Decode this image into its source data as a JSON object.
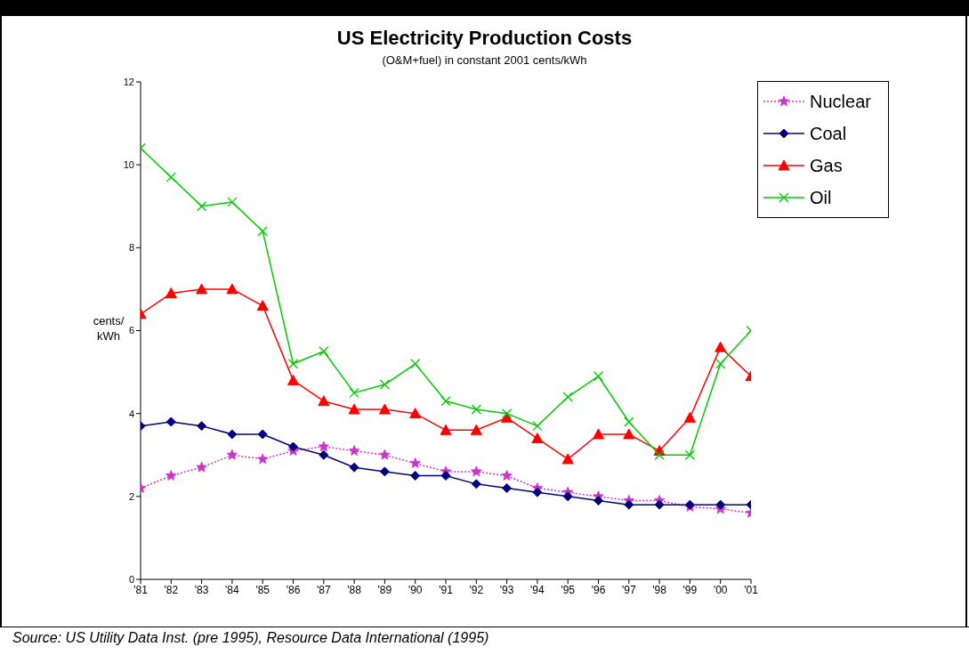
{
  "chart_data": {
    "type": "line",
    "title": "US Electricity Production Costs",
    "subtitle": "(O&M+fuel) in constant 2001 cents/kWh",
    "ylabel": "cents/ kWh",
    "categories": [
      "'81",
      "'82",
      "'83",
      "'84",
      "'85",
      "'86",
      "'87",
      "'88",
      "'89",
      "'90",
      "'91",
      "'92",
      "'93",
      "'94",
      "'95",
      "'96",
      "'97",
      "'98",
      "'99",
      "'00",
      "'01"
    ],
    "series": [
      {
        "name": "Nuclear",
        "color": "#cc33cc",
        "marker": "star",
        "line_style": "dotted",
        "values": [
          2.2,
          2.5,
          2.7,
          3.0,
          2.9,
          3.1,
          3.2,
          3.1,
          3.0,
          2.8,
          2.6,
          2.6,
          2.5,
          2.2,
          2.1,
          2.0,
          1.9,
          1.9,
          1.75,
          1.7,
          1.6
        ]
      },
      {
        "name": "Coal",
        "color": "#000080",
        "marker": "diamond",
        "line_style": "solid",
        "values": [
          3.7,
          3.8,
          3.7,
          3.5,
          3.5,
          3.2,
          3.0,
          2.7,
          2.6,
          2.5,
          2.5,
          2.3,
          2.2,
          2.1,
          2.0,
          1.9,
          1.8,
          1.8,
          1.8,
          1.8,
          1.8
        ]
      },
      {
        "name": "Gas",
        "color": "#ff0000",
        "marker": "triangle",
        "line_style": "solid",
        "values": [
          6.4,
          6.9,
          7.0,
          7.0,
          6.6,
          4.8,
          4.3,
          4.1,
          4.1,
          4.0,
          3.6,
          3.6,
          3.9,
          3.4,
          2.9,
          3.5,
          3.5,
          3.1,
          3.9,
          5.6,
          4.9
        ]
      },
      {
        "name": "Oil",
        "color": "#00cc00",
        "marker": "cross",
        "line_style": "solid",
        "values": [
          10.4,
          9.7,
          9.0,
          9.1,
          8.4,
          5.2,
          5.5,
          4.5,
          4.7,
          5.2,
          4.3,
          4.1,
          4.0,
          3.7,
          4.4,
          4.9,
          3.8,
          3.0,
          3.0,
          5.2,
          6.0
        ]
      }
    ],
    "ylim": [
      0,
      12
    ],
    "yticks": [
      0,
      2,
      4,
      6,
      8,
      10,
      12
    ],
    "grid": false,
    "legend": "top right",
    "annotations": [
      "Source: US Utility Data Inst. (pre 1995), Resource Data International (1995)"
    ]
  }
}
